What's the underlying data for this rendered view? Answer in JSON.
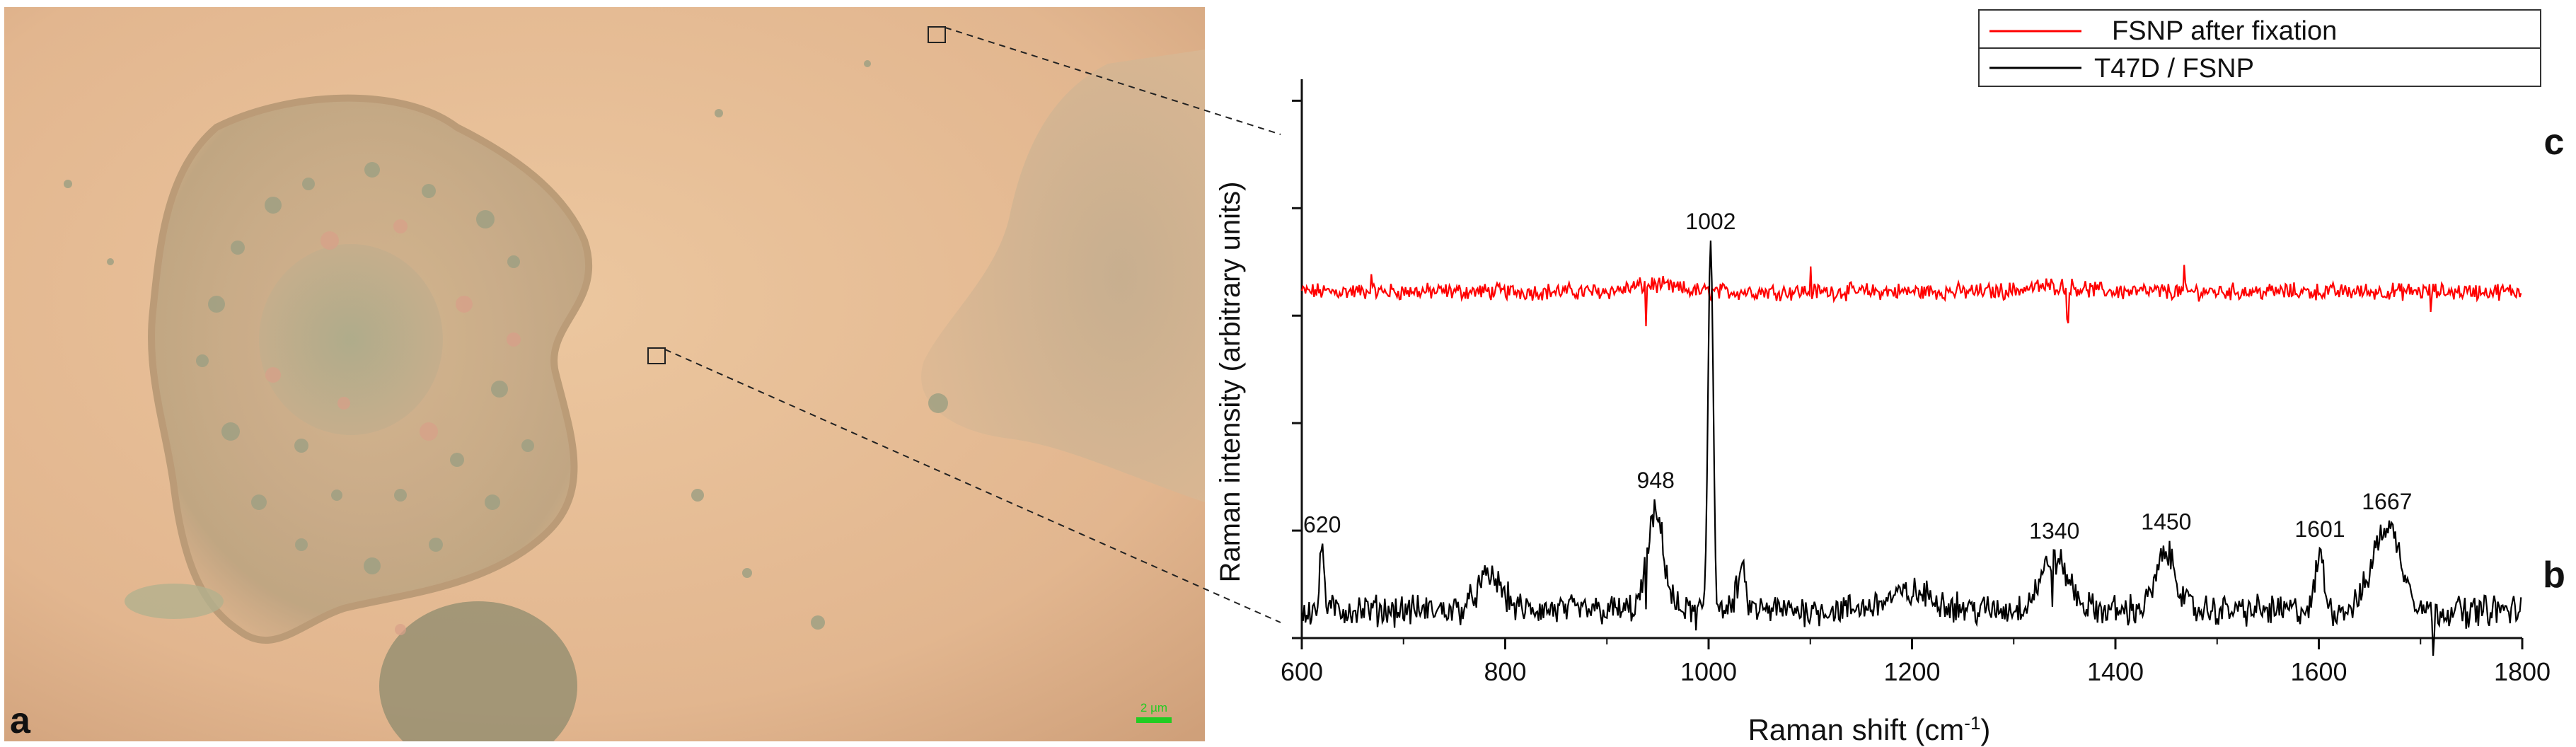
{
  "figure": {
    "panel_a_label": "a",
    "panel_b_label": "b",
    "panel_c_label": "c",
    "scale_bar_text": "2 µm",
    "scale_bar_color": "#22cc22"
  },
  "chart_data": {
    "type": "line",
    "xlabel_main": "Raman shift (cm",
    "xlabel_sup": "-1",
    "xlabel_close": ")",
    "ylabel": "Raman intensity (arbitrary units)",
    "xlim": [
      600,
      1800
    ],
    "x_ticks": [
      "600",
      "800",
      "1000",
      "1200",
      "1400",
      "1600",
      "1800"
    ],
    "y_ticks_count": 5,
    "grid": false,
    "legend_position": "top-right",
    "series": [
      {
        "name": "FSNP after fixation",
        "color": "#ff0000",
        "panel": "c",
        "baseline": 0.62,
        "noise": 0.012,
        "spikes": [
          {
            "x": 668,
            "h": 0.045
          },
          {
            "x": 938,
            "h": -0.075
          },
          {
            "x": 1100,
            "h": 0.04
          },
          {
            "x": 1353,
            "h": -0.06
          },
          {
            "x": 1468,
            "h": 0.035
          },
          {
            "x": 1710,
            "h": -0.03
          }
        ],
        "humps": [
          {
            "x": 945,
            "amp": 0.012,
            "w": 20
          },
          {
            "x": 1340,
            "amp": 0.01,
            "w": 25
          }
        ]
      },
      {
        "name": "T47D / FSNP",
        "color": "#000000",
        "panel": "b",
        "baseline": 0.05,
        "noise": 0.022,
        "peaks": [
          {
            "x": 620,
            "amp": 0.12,
            "w": 2
          },
          {
            "x": 785,
            "amp": 0.06,
            "w": 12
          },
          {
            "x": 948,
            "amp": 0.17,
            "w": 8
          },
          {
            "x": 1002,
            "amp": 0.67,
            "w": 2.5
          },
          {
            "x": 1032,
            "amp": 0.07,
            "w": 4
          },
          {
            "x": 1200,
            "amp": 0.03,
            "w": 25
          },
          {
            "x": 1340,
            "amp": 0.09,
            "w": 14
          },
          {
            "x": 1450,
            "amp": 0.1,
            "w": 10
          },
          {
            "x": 1601,
            "amp": 0.1,
            "w": 4
          },
          {
            "x": 1667,
            "amp": 0.15,
            "w": 14
          }
        ],
        "dips": [
          {
            "x": 938,
            "h": -0.07
          },
          {
            "x": 988,
            "h": -0.05
          },
          {
            "x": 1338,
            "h": -0.07
          },
          {
            "x": 1713,
            "h": -0.07
          },
          {
            "x": 1745,
            "h": -0.05
          }
        ],
        "peak_labels": [
          {
            "x": 620,
            "text": "620"
          },
          {
            "x": 948,
            "text": "948"
          },
          {
            "x": 1002,
            "text": "1002"
          },
          {
            "x": 1340,
            "text": "1340"
          },
          {
            "x": 1450,
            "text": "1450"
          },
          {
            "x": 1601,
            "text": "1601"
          },
          {
            "x": 1667,
            "text": "1667"
          }
        ]
      }
    ]
  }
}
